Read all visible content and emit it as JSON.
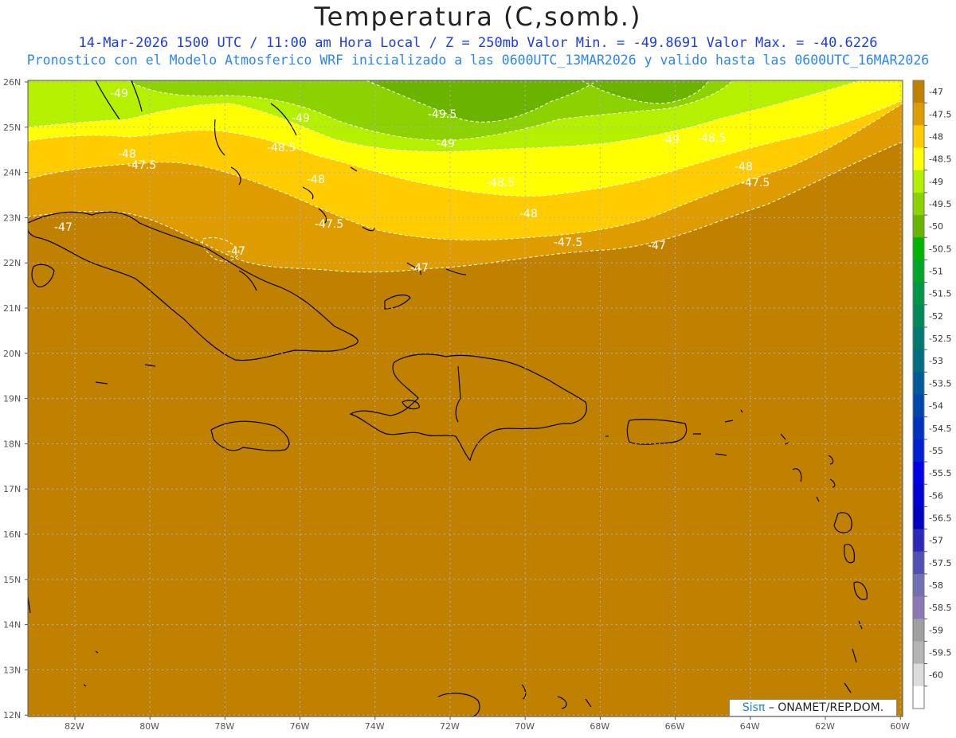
{
  "header": {
    "title": "Temperatura (C,somb.)",
    "subtitle_line1": "14-Mar-2026  1500 UTC / 11:00 am Hora Local / Z = 250mb  Valor Min. = -49.8691  Valor Max. = -40.6226",
    "subtitle_line2": "Pronostico con el Modelo Atmosferico WRF inicializado a las 0600UTC_13MAR2026 y valido hasta las  0600UTC_16MAR2026"
  },
  "map": {
    "lat_labels": [
      "26N",
      "25N",
      "24N",
      "23N",
      "22N",
      "21N",
      "20N",
      "19N",
      "18N",
      "17N",
      "16N",
      "15N",
      "14N",
      "13N",
      "12N"
    ],
    "lon_labels": [
      "82W",
      "80W",
      "78W",
      "76W",
      "74W",
      "72W",
      "70W",
      "68W",
      "66W",
      "64W",
      "62W",
      "60W"
    ],
    "contour_labels": [
      {
        "text": "-49"
      },
      {
        "text": "-49"
      },
      {
        "text": "-49.5"
      },
      {
        "text": "-49"
      },
      {
        "text": "-49"
      },
      {
        "text": "-48.5"
      },
      {
        "text": "-48.5"
      },
      {
        "text": "-48"
      },
      {
        "text": "-47.5"
      },
      {
        "text": "-48"
      },
      {
        "text": "-48.5"
      },
      {
        "text": "-48"
      },
      {
        "text": "-48"
      },
      {
        "text": "-47.5"
      },
      {
        "text": "-47.5"
      },
      {
        "text": "-47.5"
      },
      {
        "text": "-47"
      },
      {
        "text": "-47"
      },
      {
        "text": "-47"
      },
      {
        "text": "-47"
      }
    ],
    "colors": {
      "dominant": "#c08000",
      "band_475": "#de9c00",
      "band_48": "#ffcc00",
      "band_485": "#ffff00",
      "band_49": "#b4f000",
      "band_495": "#8cd200",
      "band_50": "#6ab400"
    }
  },
  "colorbar": {
    "labels": [
      "-47",
      "-47.5",
      "-48",
      "-48.5",
      "-49",
      "-49.5",
      "-50",
      "-50.5",
      "-51",
      "-51.5",
      "-52",
      "-52.5",
      "-53",
      "-53.5",
      "-54",
      "-54.5",
      "-55",
      "-55.5",
      "-56",
      "-56.5",
      "-57",
      "-57.5",
      "-58",
      "-58.5",
      "-59",
      "-59.5",
      "-60"
    ],
    "colors": [
      "#c08000",
      "#de9c00",
      "#ffcc00",
      "#ffff00",
      "#b4f000",
      "#8cd200",
      "#6ab400",
      "#00b400",
      "#00a628",
      "#009646",
      "#00885a",
      "#007a6e",
      "#006e82",
      "#005a98",
      "#0046aa",
      "#0032be",
      "#001ed2",
      "#0000e6",
      "#0000d2",
      "#0000be",
      "#2a2ab4",
      "#5050b4",
      "#7070b4",
      "#8c78b4",
      "#a0a0a0",
      "#b4b4b4",
      "#dcdcdc",
      "#ffffff"
    ]
  },
  "credit": {
    "logo": "Sisπ",
    "text": "– ONAMET/REP.DOM."
  }
}
